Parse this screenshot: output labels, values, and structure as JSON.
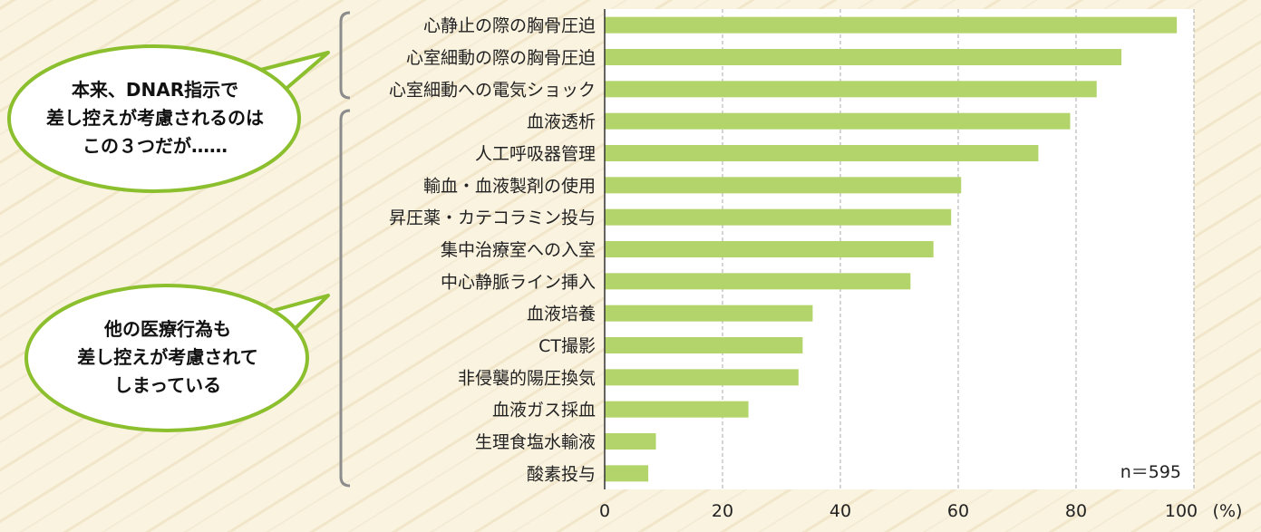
{
  "chart_data": {
    "type": "bar",
    "orientation": "horizontal",
    "categories": [
      "心静止の際の胸骨圧迫",
      "心室細動の際の胸骨圧迫",
      "心室細動への電気ショック",
      "血液透析",
      "人工呼吸器管理",
      "輸血・血液製剤の使用",
      "昇圧薬・カテコラミン投与",
      "集中治療室への入室",
      "中心静脈ライン挿入",
      "血液培養",
      "CT撮影",
      "非侵襲的陽圧換気",
      "血液ガス採血",
      "生理食塩水輸液",
      "酸素投与"
    ],
    "values": [
      97.1,
      87.7,
      83.5,
      79.0,
      73.6,
      60.5,
      58.8,
      55.8,
      51.9,
      35.3,
      33.6,
      32.9,
      24.4,
      8.7,
      7.4
    ],
    "xlim": [
      0,
      100
    ],
    "x_ticks": [
      "0",
      "20",
      "40",
      "60",
      "80",
      "100"
    ],
    "x_unit": "(%)",
    "grid": "vertical dashed",
    "annotation": "n＝595",
    "bar_color": "#b3d46a",
    "gridline_color": "#a8a8a8"
  },
  "callouts": {
    "top": {
      "lines": [
        "本来、DNAR指示で",
        "差し控えが考慮されるのは",
        "この３つだが……"
      ]
    },
    "bottom": {
      "lines": [
        "他の医療行為も",
        "差し控えが考慮されて",
        "しまっている"
      ]
    },
    "border_color": "#8cbf2e",
    "bracket_color": "#8c8c8c"
  }
}
